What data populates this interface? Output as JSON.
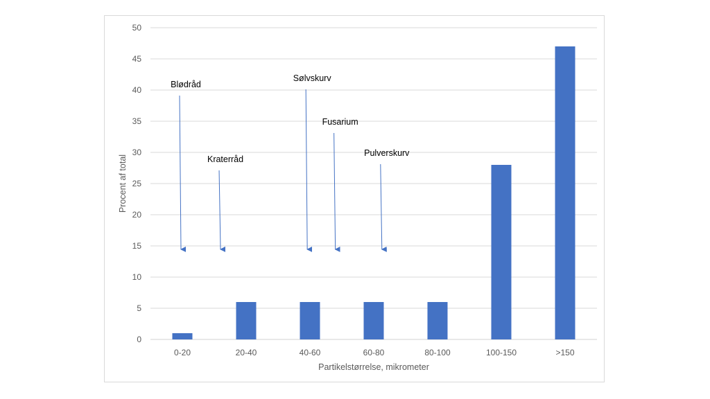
{
  "chart_data": {
    "type": "bar",
    "title": "",
    "categories": [
      "0-20",
      "20-40",
      "40-60",
      "60-80",
      "80-100",
      "100-150",
      ">150"
    ],
    "values": [
      1,
      6,
      6,
      6,
      6,
      28,
      47
    ],
    "xlabel": "Partikelstørrelse, mikrometer",
    "ylabel": "Procent af total",
    "ylim": [
      0,
      50
    ],
    "yticks": [
      0,
      5,
      10,
      15,
      20,
      25,
      30,
      35,
      40,
      45,
      50
    ],
    "grid": true,
    "legend": "none",
    "bar_color": "#4472c4",
    "annotations": [
      {
        "text": "Blødråd",
        "x_category_pos": 0.0,
        "label_y": 40,
        "arrow_y": 15
      },
      {
        "text": "Kraterråd",
        "x_category_pos": 0.62,
        "label_y": 28,
        "arrow_y": 15
      },
      {
        "text": "Sølvskurv",
        "x_category_pos": 1.98,
        "label_y": 41,
        "arrow_y": 15
      },
      {
        "text": "Fusarium",
        "x_category_pos": 2.42,
        "label_y": 34,
        "arrow_y": 15
      },
      {
        "text": "Pulverskurv",
        "x_category_pos": 3.15,
        "label_y": 29,
        "arrow_y": 15
      }
    ]
  }
}
